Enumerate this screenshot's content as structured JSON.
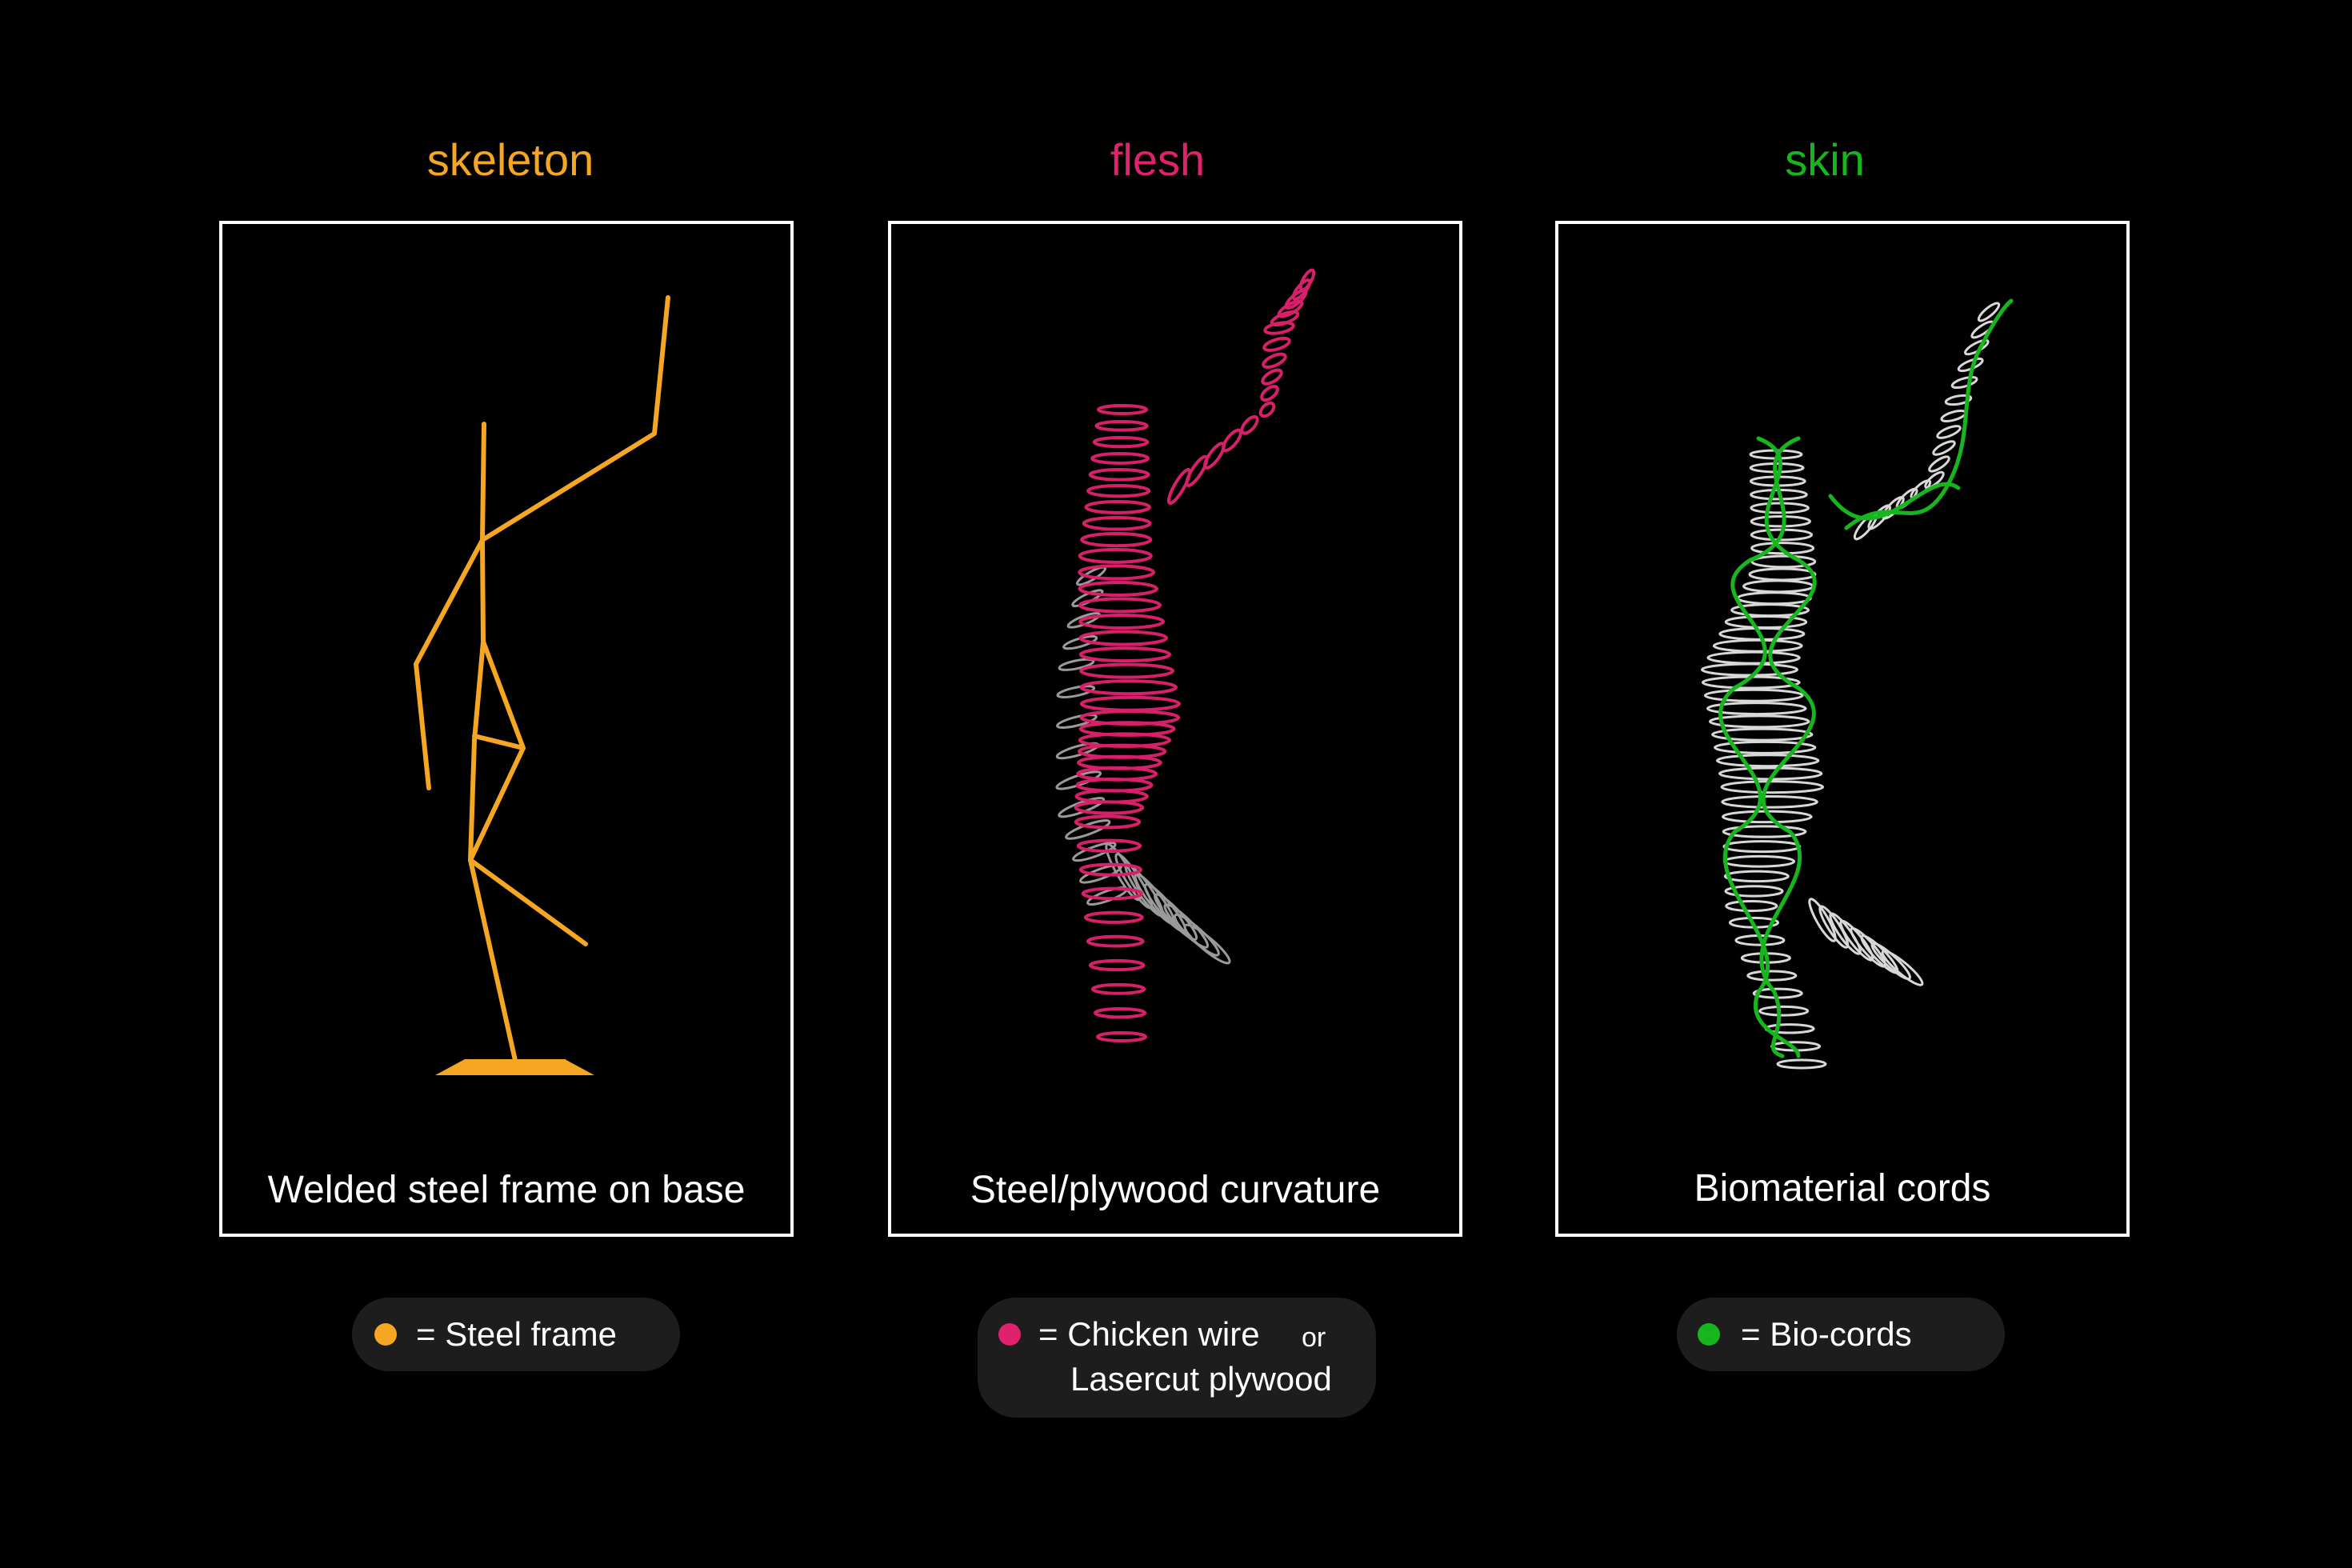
{
  "titles": {
    "skeleton": "skeleton",
    "flesh": "flesh",
    "skin": "skin"
  },
  "captions": {
    "skeleton": "Welded steel frame on base",
    "flesh": "Steel/plywood curvature",
    "skin": "Biomaterial cords"
  },
  "legends": {
    "skeleton": {
      "label": "= Steel frame"
    },
    "flesh": {
      "label": "= Chicken wire",
      "connector": "or",
      "label2": "Lasercut plywood"
    },
    "skin": {
      "label": "= Bio-cords"
    }
  },
  "colors": {
    "skeleton": "#f5a623",
    "flesh": "#e0226e",
    "skin": "#17b51e",
    "rings": "#d8d8d8",
    "background": "#000000",
    "border": "#ffffff"
  }
}
